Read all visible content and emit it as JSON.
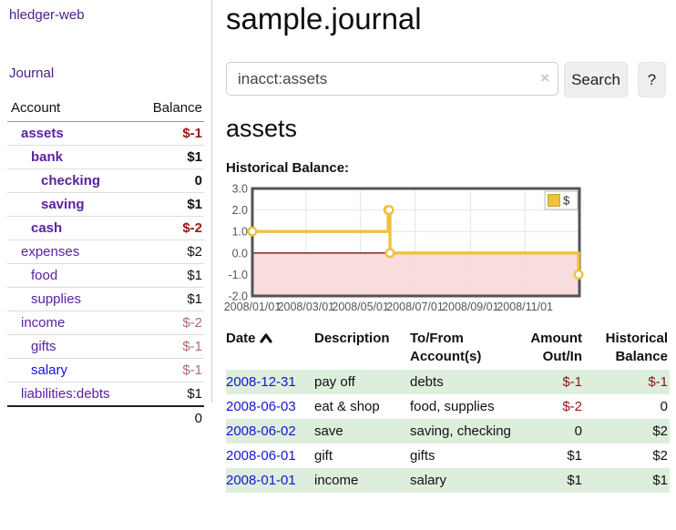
{
  "app": {
    "title": "hledger-web"
  },
  "sidebar": {
    "journal_link": "Journal",
    "accounts_header": {
      "account": "Account",
      "balance": "Balance"
    },
    "accounts": [
      {
        "name": "assets",
        "depth": 1,
        "balance": "$-1",
        "bold": true,
        "neg": "strong"
      },
      {
        "name": "bank",
        "depth": 2,
        "balance": "$1",
        "bold": true
      },
      {
        "name": "checking",
        "depth": 3,
        "balance": "0",
        "bold": true
      },
      {
        "name": "saving",
        "depth": 3,
        "balance": "$1",
        "bold": true
      },
      {
        "name": "cash",
        "depth": 2,
        "balance": "$-2",
        "bold": true,
        "neg": "strong"
      },
      {
        "name": "expenses",
        "depth": 1,
        "balance": "$2"
      },
      {
        "name": "food",
        "depth": 2,
        "balance": "$1"
      },
      {
        "name": "supplies",
        "depth": 2,
        "balance": "$1"
      },
      {
        "name": "income",
        "depth": 1,
        "balance": "$-2",
        "neg": "muted"
      },
      {
        "name": "gifts",
        "depth": 2,
        "balance": "$-1",
        "neg": "muted"
      },
      {
        "name": "salary",
        "depth": 2,
        "balance": "$-1",
        "neg": "muted",
        "link_color": "blue"
      },
      {
        "name": "liabilities:debts",
        "depth": 1,
        "balance": "$1"
      }
    ],
    "total": "0"
  },
  "header": {
    "title": "sample.journal"
  },
  "search": {
    "value": "inacct:assets",
    "clear_icon": "×",
    "button_label": "Search",
    "help_label": "?"
  },
  "account_page": {
    "heading": "assets",
    "chart_title": "Historical Balance:"
  },
  "chart_data": {
    "type": "line",
    "title": "Historical Balance",
    "step": true,
    "legend": {
      "label": "$",
      "position": "top-right"
    },
    "series": [
      {
        "name": "$",
        "color": "#EDC240",
        "points": [
          {
            "date": "2008-01-01",
            "day": 0,
            "value": 1
          },
          {
            "date": "2008-06-01",
            "day": 152,
            "value": 2
          },
          {
            "date": "2008-06-02",
            "day": 153,
            "value": 2
          },
          {
            "date": "2008-06-03",
            "day": 154,
            "value": 0
          },
          {
            "date": "2008-12-31",
            "day": 365,
            "value": -1
          }
        ]
      }
    ],
    "x_domain_days": [
      0,
      366
    ],
    "x_ticks": [
      {
        "label": "2008/01/01",
        "day": 0
      },
      {
        "label": "2008/03/01",
        "day": 60
      },
      {
        "label": "2008/05/01",
        "day": 121
      },
      {
        "label": "2008/07/01",
        "day": 182
      },
      {
        "label": "2008/09/01",
        "day": 244
      },
      {
        "label": "2008/11/01",
        "day": 305
      }
    ],
    "y_ticks": [
      "3.0",
      "2.0",
      "1.0",
      "0.0",
      "-1.0",
      "-2.0"
    ],
    "ylim": [
      -2,
      3
    ],
    "grid": true,
    "colors": {
      "line": "#EDC240",
      "negative_region": "#f9dcdc",
      "zero_line": "#7c1212",
      "border": "#545454",
      "gridline": "#e4e4e4",
      "tick_text": "#555555"
    }
  },
  "register_table": {
    "header": {
      "date": "Date",
      "description": "Description",
      "tofrom_line1": "To/From",
      "tofrom_line2": "Account(s)",
      "amount_line1": "Amount",
      "amount_line2": "Out/In",
      "hist_line1": "Historical",
      "hist_line2": "Balance"
    },
    "rows": [
      {
        "date": "2008-12-31",
        "description": "pay off",
        "accounts": "debts",
        "amount": "$-1",
        "amount_neg": true,
        "balance": "$-1",
        "balance_neg": true
      },
      {
        "date": "2008-06-03",
        "description": "eat & shop",
        "accounts": "food, supplies",
        "amount": "$-2",
        "amount_neg": true,
        "balance": "0",
        "balance_neg": false
      },
      {
        "date": "2008-06-02",
        "description": "save",
        "accounts": "saving, checking",
        "amount": "0",
        "amount_neg": false,
        "balance": "$2",
        "balance_neg": false
      },
      {
        "date": "2008-06-01",
        "description": "gift",
        "accounts": "gifts",
        "amount": "$1",
        "amount_neg": false,
        "balance": "$2",
        "balance_neg": false
      },
      {
        "date": "2008-01-01",
        "description": "income",
        "accounts": "salary",
        "amount": "$1",
        "amount_neg": false,
        "balance": "$1",
        "balance_neg": false
      }
    ]
  }
}
